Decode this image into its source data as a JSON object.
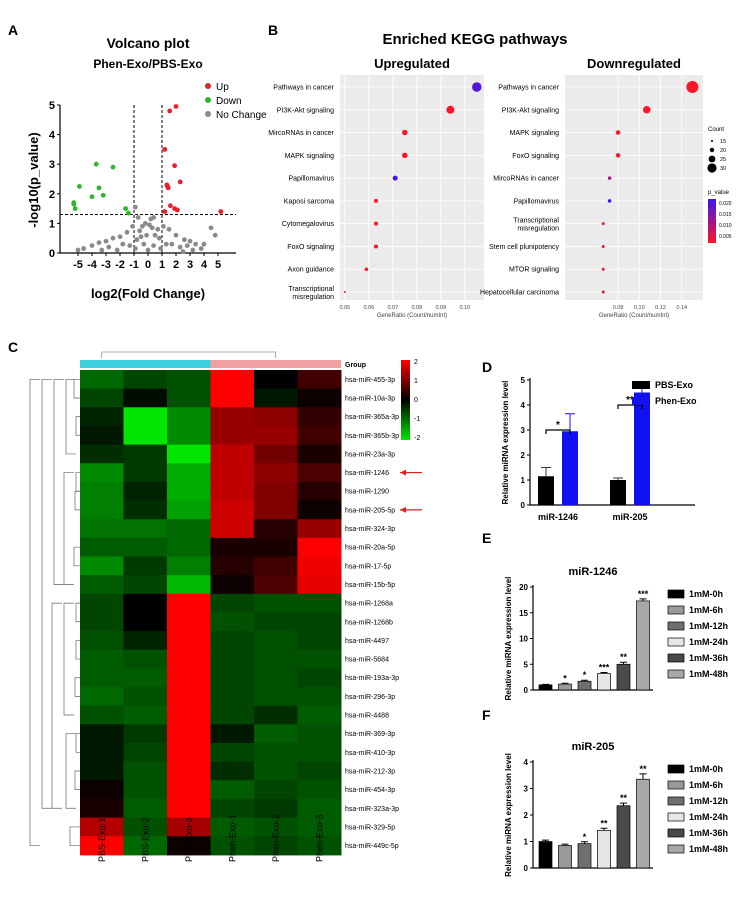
{
  "panel_labels": {
    "a": "A",
    "b": "B",
    "c": "C",
    "d": "D",
    "e": "E",
    "f": "F"
  },
  "colors": {
    "up": "#e8202a",
    "down": "#2db52d",
    "nochange": "#8a8a8a",
    "pbs": "#000000",
    "phen": "#1010f0",
    "group_pbs": "#3fd0e0",
    "group_phen": "#f0a0a0",
    "kegg_bg": "#ebebeb"
  },
  "chart_data": [
    {
      "id": "volcano",
      "type": "scatter",
      "title": "Volcano plot",
      "subtitle": "Phen-Exo/PBS-Exo",
      "xlabel": "log2(Fold Change)",
      "ylabel": "-log10(p_value)",
      "xlim": [
        -6,
        6
      ],
      "ylim": [
        0,
        5
      ],
      "xticks": [
        "-5",
        "-4",
        "-3",
        "-2",
        "-1",
        "0",
        "1",
        "2",
        "3",
        "4",
        "5"
      ],
      "yticks": [
        "0",
        "1",
        "2",
        "3",
        "4",
        "5"
      ],
      "vlines": [
        -1,
        1
      ],
      "hline": 1.3,
      "legend": [
        "Up",
        "Down",
        "No Change"
      ],
      "legend_position": "top-right",
      "series": [
        {
          "name": "Up",
          "points": [
            [
              1.55,
              4.8
            ],
            [
              2.0,
              4.95
            ],
            [
              1.2,
              3.5
            ],
            [
              1.9,
              2.95
            ],
            [
              2.3,
              2.4
            ],
            [
              1.35,
              2.3
            ],
            [
              1.4,
              2.25
            ],
            [
              1.45,
              2.2
            ],
            [
              1.6,
              1.6
            ],
            [
              1.9,
              1.5
            ],
            [
              2.1,
              1.45
            ],
            [
              1.2,
              1.4
            ],
            [
              5.2,
              1.4
            ]
          ]
        },
        {
          "name": "Down",
          "points": [
            [
              -3.7,
              3.0
            ],
            [
              -2.5,
              2.9
            ],
            [
              -4.9,
              2.25
            ],
            [
              -3.5,
              2.2
            ],
            [
              -4.0,
              1.9
            ],
            [
              -3.2,
              1.95
            ],
            [
              -5.3,
              1.65
            ],
            [
              -5.2,
              1.5
            ],
            [
              -1.6,
              1.5
            ],
            [
              -1.4,
              1.35
            ],
            [
              -5.3,
              1.7
            ]
          ]
        },
        {
          "name": "No Change",
          "points": [
            [
              -0.9,
              1.55
            ],
            [
              -0.7,
              1.2
            ],
            [
              0.4,
              1.2
            ],
            [
              0.2,
              1.15
            ],
            [
              -0.2,
              1.0
            ],
            [
              0.1,
              0.95
            ],
            [
              -0.4,
              0.9
            ],
            [
              0.3,
              0.85
            ],
            [
              0.7,
              0.8
            ],
            [
              -0.6,
              0.75
            ],
            [
              -1.1,
              0.9
            ],
            [
              1.1,
              0.9
            ],
            [
              -1.5,
              0.7
            ],
            [
              1.5,
              0.8
            ],
            [
              -2.0,
              0.55
            ],
            [
              2.0,
              0.6
            ],
            [
              -2.5,
              0.5
            ],
            [
              2.6,
              0.45
            ],
            [
              -3.0,
              0.4
            ],
            [
              3.0,
              0.4
            ],
            [
              -3.5,
              0.35
            ],
            [
              3.4,
              0.3
            ],
            [
              -4.0,
              0.25
            ],
            [
              4.0,
              0.3
            ],
            [
              4.5,
              0.85
            ],
            [
              4.8,
              0.6
            ],
            [
              -4.6,
              0.15
            ],
            [
              -5.0,
              0.1
            ],
            [
              3.8,
              0.15
            ],
            [
              2.3,
              0.2
            ],
            [
              -0.8,
              0.45
            ],
            [
              0.8,
              0.5
            ],
            [
              -0.3,
              0.3
            ],
            [
              0.4,
              0.25
            ],
            [
              -1.8,
              0.3
            ],
            [
              1.7,
              0.3
            ],
            [
              -2.8,
              0.2
            ],
            [
              2.8,
              0.25
            ],
            [
              -0.1,
              0.6
            ],
            [
              0.5,
              0.6
            ],
            [
              -0.5,
              0.55
            ],
            [
              1.3,
              0.3
            ],
            [
              -1.3,
              0.25
            ],
            [
              0,
              0.1
            ],
            [
              0.9,
              0.15
            ],
            [
              -0.9,
              0.15
            ],
            [
              -2.2,
              0.1
            ],
            [
              2.5,
              0.05
            ],
            [
              -3.3,
              0.1
            ],
            [
              3.2,
              0.1
            ]
          ]
        }
      ]
    },
    {
      "id": "kegg",
      "type": "scatter",
      "title": "Enriched KEGG pathways",
      "xlabel": "GeneRatio (Count/numInt)",
      "panels": [
        {
          "subtitle": "Upregulated",
          "xlim": [
            0.048,
            0.108
          ],
          "xticks": [
            "0.05",
            "0.06",
            "0.07",
            "0.08",
            "0.09",
            "0.10"
          ],
          "tick_values": [
            0.05,
            0.06,
            0.07,
            0.08,
            0.09,
            0.1
          ],
          "categories": [
            "Pathways in cancer",
            "PI3K-Akt signaling",
            "MircoRNAs in cancer",
            "MAPK signaling",
            "Papillomavirus",
            "Kaposi sarcoma",
            "Cytomegalovirus",
            "FoxO signaling",
            "Axon guidance",
            "Transcriptional misregulation"
          ],
          "gene_ratio": [
            0.105,
            0.094,
            0.075,
            0.075,
            0.071,
            0.063,
            0.063,
            0.063,
            0.059,
            0.05
          ],
          "count": [
            28,
            25,
            20,
            20,
            19,
            17,
            17,
            17,
            16,
            13
          ],
          "p_value": [
            0.018,
            0.0005,
            0.0001,
            0.0002,
            0.022,
            0.0004,
            0.0003,
            0.0005,
            0.0008,
            0.0012
          ]
        },
        {
          "subtitle": "Downregulated",
          "xlim": [
            0.03,
            0.16
          ],
          "xticks": [
            "0.08",
            "0.10",
            "0.12",
            "0.14"
          ],
          "tick_values": [
            0.08,
            0.1,
            0.12,
            0.14
          ],
          "categories": [
            "Pathways in cancer",
            "PI3K-Akt signaling",
            "MAPK signaling",
            "FoxO signaling",
            "MircoRNAs in cancer",
            "Papillomavirus",
            "Transcriptional misregulation",
            "Stem cell plunipotency",
            "MTOR signaling",
            "Hepatocellular carcinoma"
          ],
          "gene_ratio": [
            0.15,
            0.107,
            0.08,
            0.08,
            0.072,
            0.072,
            0.066,
            0.066,
            0.066,
            0.066
          ],
          "count": [
            33,
            24,
            18,
            18,
            16,
            16,
            15,
            15,
            15,
            15
          ],
          "p_value": [
            0.0003,
            0.0004,
            0.0008,
            0.0009,
            0.009,
            0.021,
            0.0012,
            0.0015,
            0.0014,
            0.0016
          ]
        }
      ],
      "legend_count_title": "Count",
      "legend_counts": [
        "15",
        "20",
        "25",
        "30"
      ],
      "legend_pvalue_title": "p_value",
      "legend_pvalues": [
        "0.020",
        "0.015",
        "0.010",
        "0.005"
      ]
    },
    {
      "id": "heatmap",
      "type": "heatmap",
      "group_label": "Group",
      "columns": [
        "PBS-Exo-1",
        "PBS-Exo-2",
        "PBS-Exo-3",
        "Phen-Exo-1",
        "Phen-Exo-2",
        "Phen-Exo-3"
      ],
      "rows": [
        "hsa-miR-455-3p",
        "hsa-miR-10a-3p",
        "hsa-miR-365a-3p",
        "hsa-miR-365b-3p",
        "hsa-miR-23a-3p",
        "hsa-miR-1246",
        "hsa-miR-1290",
        "hsa-miR-205-5p",
        "hsa-miR-324-3p",
        "hsa-miR-20a-5p",
        "hsa-miR-17-5p",
        "hsa-miR-15b-5p",
        "hsa-miR-1268a",
        "hsa-miR-1268b",
        "hsa-miR-4497",
        "hsa-miR-5684",
        "hsa-miR-193a-3p",
        "hsa-miR-296-3p",
        "hsa-miR-4488",
        "hsa-miR-369-3p",
        "hsa-miR-410-3p",
        "hsa-miR-212-3p",
        "hsa-miR-454-3p",
        "hsa-miR-323a-3p",
        "hsa-miR-329-5p",
        "hsa-miR-449c-5p"
      ],
      "values": [
        [
          -0.9,
          -0.6,
          -0.7,
          2,
          0,
          0.5
        ],
        [
          -0.6,
          -0.1,
          -0.7,
          2,
          -0.2,
          0.1
        ],
        [
          -0.3,
          -2,
          -1.2,
          1.2,
          1.1,
          0.4
        ],
        [
          -0.2,
          -2,
          -1.2,
          1.2,
          1.2,
          0.5
        ],
        [
          -0.4,
          -0.5,
          -2,
          1.5,
          0.9,
          0.2
        ],
        [
          -1.2,
          -0.5,
          -1.5,
          1.5,
          1.1,
          0.6
        ],
        [
          -1.1,
          -0.3,
          -1.5,
          1.5,
          1.0,
          0.3
        ],
        [
          -1.1,
          -0.4,
          -1.4,
          1.6,
          1.0,
          0.1
        ],
        [
          -1,
          -1,
          -0.9,
          1.6,
          0.3,
          1.2
        ],
        [
          -0.8,
          -0.8,
          -0.9,
          0.2,
          0.2,
          2
        ],
        [
          -1.2,
          -0.5,
          -1.1,
          0.3,
          0.5,
          1.9
        ],
        [
          -0.8,
          -0.6,
          -1.6,
          0.1,
          0.6,
          1.8
        ],
        [
          -0.6,
          0,
          2,
          -0.6,
          -0.7,
          -0.7
        ],
        [
          -0.6,
          0,
          2,
          -0.7,
          -0.6,
          -0.6
        ],
        [
          -0.7,
          -0.3,
          2,
          -0.6,
          -0.7,
          -0.6
        ],
        [
          -0.8,
          -0.7,
          2,
          -0.6,
          -0.7,
          -0.7
        ],
        [
          -0.8,
          -0.8,
          2,
          -0.6,
          -0.7,
          -0.6
        ],
        [
          -0.9,
          -0.7,
          2,
          -0.6,
          -0.7,
          -0.7
        ],
        [
          -0.7,
          -0.8,
          2,
          -0.6,
          -0.4,
          -0.8
        ],
        [
          -0.2,
          -0.5,
          2,
          -0.2,
          -0.8,
          -0.7
        ],
        [
          -0.2,
          -0.6,
          2,
          -0.6,
          -0.7,
          -0.7
        ],
        [
          -0.2,
          -0.7,
          2,
          -0.4,
          -0.7,
          -0.6
        ],
        [
          0.1,
          -0.7,
          2,
          -0.8,
          -0.6,
          -0.7
        ],
        [
          0.2,
          -0.8,
          2,
          -0.6,
          -0.5,
          -0.8
        ],
        [
          1.4,
          -0.7,
          1.3,
          -0.8,
          -0.7,
          -0.8
        ],
        [
          2,
          -0.9,
          0.1,
          -0.7,
          -0.6,
          -0.7
        ]
      ],
      "scale_labels": [
        "2",
        "1",
        "0",
        "-1",
        "-2"
      ],
      "vmin": -2,
      "vmax": 2,
      "highlight_rows": [
        5,
        7
      ]
    },
    {
      "id": "panel-d",
      "type": "bar",
      "categories": [
        "miR-1246",
        "miR-205"
      ],
      "ylabel": "Relative miRNA expression level",
      "ylim": [
        0,
        5
      ],
      "yticks": [
        "0",
        "1",
        "2",
        "3",
        "4",
        "5"
      ],
      "series": [
        {
          "name": "PBS-Exo",
          "values": [
            1.15,
            1.0
          ],
          "errors": [
            0.35,
            0.08
          ]
        },
        {
          "name": "Phen-Exo",
          "values": [
            2.95,
            4.5
          ],
          "errors": [
            0.7,
            0.3
          ]
        }
      ],
      "significance": [
        "*",
        "**"
      ]
    },
    {
      "id": "panel-e",
      "type": "bar",
      "title": "miR-1246",
      "ylabel": "Relative miRNA expression level",
      "ylim": [
        0,
        20
      ],
      "yticks": [
        "0",
        "5",
        "10",
        "15",
        "20"
      ],
      "categories": [
        "1mM-0h",
        "1mM-6h",
        "1mM-12h",
        "1mM-24h",
        "1mM-36h",
        "1mM-48h"
      ],
      "values": [
        1.0,
        1.15,
        1.7,
        3.2,
        5.0,
        17.3
      ],
      "errors": [
        0.1,
        0.15,
        0.2,
        0.2,
        0.4,
        0.4
      ],
      "significance": [
        "",
        "*",
        "*",
        "***",
        "**",
        "***"
      ]
    },
    {
      "id": "panel-f",
      "type": "bar",
      "title": "miR-205",
      "ylabel": "Relative miRNA expression level",
      "ylim": [
        0,
        4
      ],
      "yticks": [
        "0",
        "1",
        "2",
        "3",
        "4"
      ],
      "categories": [
        "1mM-0h",
        "1mM-6h",
        "1mM-12h",
        "1mM-24h",
        "1mM-36h",
        "1mM-48h"
      ],
      "values": [
        1.0,
        0.85,
        0.92,
        1.42,
        2.35,
        3.35
      ],
      "errors": [
        0.05,
        0.05,
        0.07,
        0.08,
        0.1,
        0.2
      ],
      "significance": [
        "",
        "",
        "*",
        "**",
        "**",
        "**"
      ]
    }
  ]
}
